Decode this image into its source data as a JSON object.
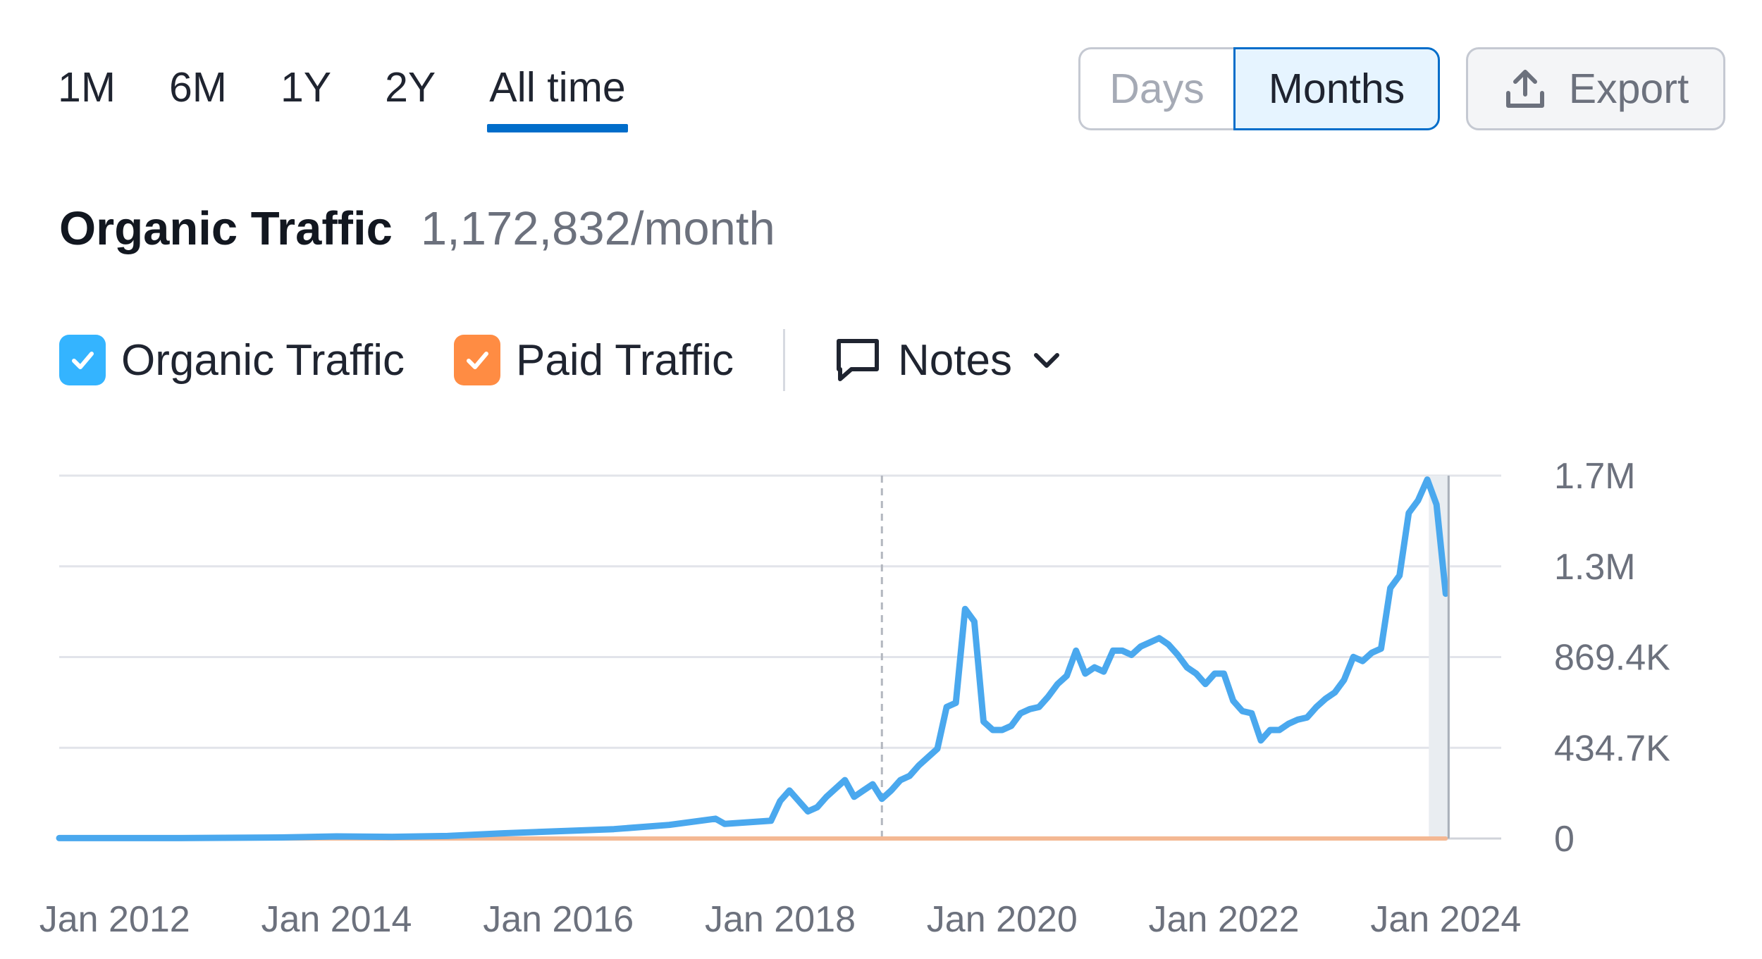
{
  "periods": [
    {
      "label": "1M",
      "active": false
    },
    {
      "label": "6M",
      "active": false
    },
    {
      "label": "1Y",
      "active": false
    },
    {
      "label": "2Y",
      "active": false
    },
    {
      "label": "All time",
      "active": true
    }
  ],
  "granularity": {
    "days_label": "Days",
    "months_label": "Months",
    "selected": "Months"
  },
  "export": {
    "label": "Export",
    "icon": "upload-icon"
  },
  "header": {
    "title": "Organic Traffic",
    "value": "1,172,832/month"
  },
  "legend": {
    "items": [
      {
        "label": "Organic Traffic",
        "color": "#34b4ff",
        "checked": true
      },
      {
        "label": "Paid Traffic",
        "color": "#ff8c43",
        "checked": true
      }
    ],
    "notes_label": "Notes"
  },
  "colors": {
    "accent": "#006dca",
    "organic_line": "#4aa8ee",
    "paid_line": "#f4b893",
    "grid": "#e2e4ea"
  },
  "chart_data": {
    "type": "line",
    "x_tick_labels": [
      "Jan 2012",
      "Jan 2014",
      "Jan 2016",
      "Jan 2018",
      "Jan 2020",
      "Jan 2022",
      "Jan 2024"
    ],
    "y_tick_labels": [
      "0",
      "434.7K",
      "869.4K",
      "1.3M",
      "1.7M"
    ],
    "y_tick_values": [
      0,
      434700,
      869400,
      1304100,
      1738800
    ],
    "ylim": [
      0,
      1738800
    ],
    "xlim": [
      "2011-07",
      "2024-07"
    ],
    "grid": true,
    "annotation_line_x": "2018-12",
    "series": [
      {
        "name": "Organic Traffic",
        "color": "#4aa8ee",
        "points": [
          [
            "2011-07",
            2000
          ],
          [
            "2012-07",
            2000
          ],
          [
            "2013-07",
            5000
          ],
          [
            "2014-01",
            10000
          ],
          [
            "2014-07",
            8000
          ],
          [
            "2015-01",
            12000
          ],
          [
            "2015-07",
            25000
          ],
          [
            "2016-07",
            45000
          ],
          [
            "2017-01",
            65000
          ],
          [
            "2017-06",
            95000
          ],
          [
            "2017-07",
            70000
          ],
          [
            "2017-12",
            85000
          ],
          [
            "2018-01",
            180000
          ],
          [
            "2018-02",
            230000
          ],
          [
            "2018-03",
            180000
          ],
          [
            "2018-04",
            130000
          ],
          [
            "2018-05",
            150000
          ],
          [
            "2018-06",
            200000
          ],
          [
            "2018-07",
            240000
          ],
          [
            "2018-08",
            280000
          ],
          [
            "2018-09",
            200000
          ],
          [
            "2018-10",
            230000
          ],
          [
            "2018-11",
            260000
          ],
          [
            "2018-12",
            190000
          ],
          [
            "2019-01",
            230000
          ],
          [
            "2019-02",
            280000
          ],
          [
            "2019-03",
            300000
          ],
          [
            "2019-04",
            350000
          ],
          [
            "2019-05",
            390000
          ],
          [
            "2019-06",
            430000
          ],
          [
            "2019-07",
            630000
          ],
          [
            "2019-08",
            650000
          ],
          [
            "2019-09",
            1100000
          ],
          [
            "2019-10",
            1040000
          ],
          [
            "2019-11",
            560000
          ],
          [
            "2019-12",
            520000
          ],
          [
            "2020-01",
            520000
          ],
          [
            "2020-02",
            540000
          ],
          [
            "2020-03",
            600000
          ],
          [
            "2020-04",
            620000
          ],
          [
            "2020-05",
            630000
          ],
          [
            "2020-06",
            680000
          ],
          [
            "2020-07",
            740000
          ],
          [
            "2020-08",
            780000
          ],
          [
            "2020-09",
            900000
          ],
          [
            "2020-10",
            790000
          ],
          [
            "2020-11",
            820000
          ],
          [
            "2020-12",
            800000
          ],
          [
            "2021-01",
            900000
          ],
          [
            "2021-02",
            900000
          ],
          [
            "2021-03",
            880000
          ],
          [
            "2021-04",
            920000
          ],
          [
            "2021-05",
            940000
          ],
          [
            "2021-06",
            960000
          ],
          [
            "2021-07",
            930000
          ],
          [
            "2021-08",
            880000
          ],
          [
            "2021-09",
            820000
          ],
          [
            "2021-10",
            790000
          ],
          [
            "2021-11",
            740000
          ],
          [
            "2021-12",
            790000
          ],
          [
            "2022-01",
            790000
          ],
          [
            "2022-02",
            660000
          ],
          [
            "2022-03",
            610000
          ],
          [
            "2022-04",
            600000
          ],
          [
            "2022-05",
            470000
          ],
          [
            "2022-06",
            520000
          ],
          [
            "2022-07",
            520000
          ],
          [
            "2022-08",
            550000
          ],
          [
            "2022-09",
            570000
          ],
          [
            "2022-10",
            580000
          ],
          [
            "2022-11",
            630000
          ],
          [
            "2022-12",
            670000
          ],
          [
            "2023-01",
            700000
          ],
          [
            "2023-02",
            760000
          ],
          [
            "2023-03",
            870000
          ],
          [
            "2023-04",
            850000
          ],
          [
            "2023-05",
            890000
          ],
          [
            "2023-06",
            910000
          ],
          [
            "2023-07",
            1200000
          ],
          [
            "2023-08",
            1260000
          ],
          [
            "2023-09",
            1560000
          ],
          [
            "2023-10",
            1620000
          ],
          [
            "2023-11",
            1720000
          ],
          [
            "2023-12",
            1600000
          ],
          [
            "2024-01",
            1172832
          ]
        ]
      },
      {
        "name": "Paid Traffic",
        "color": "#f4b893",
        "points": [
          [
            "2011-07",
            0
          ],
          [
            "2024-01",
            0
          ]
        ]
      }
    ]
  }
}
